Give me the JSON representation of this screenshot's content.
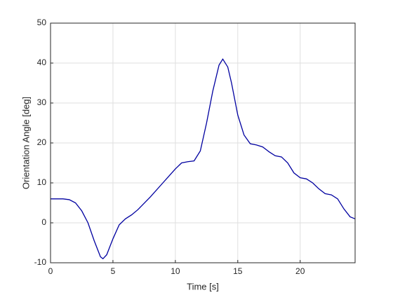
{
  "chart_data": {
    "type": "line",
    "xlabel": "Time [s]",
    "ylabel": "Orientation Angle [deg]",
    "x": [
      0,
      1,
      1.5,
      2,
      2.5,
      3,
      3.5,
      4,
      4.2,
      4.5,
      5,
      5.5,
      6,
      6.5,
      7,
      8,
      9,
      10,
      10.5,
      11,
      11.5,
      12,
      12.5,
      13,
      13.5,
      13.8,
      14.2,
      14.5,
      15,
      15.5,
      16,
      16.5,
      17,
      17.5,
      18,
      18.5,
      19,
      19.5,
      20,
      20.5,
      21,
      21.5,
      22,
      22.5,
      23,
      23.5,
      24,
      24.4
    ],
    "series": [
      {
        "color": "#0000a0",
        "values": [
          6,
          6,
          5.8,
          5,
          3,
          0,
          -4.5,
          -8.5,
          -9,
          -8,
          -4,
          -0.5,
          1,
          2,
          3.3,
          6.5,
          10,
          13.5,
          15,
          15.3,
          15.5,
          18,
          25,
          33,
          39.5,
          41,
          39,
          35,
          27,
          22,
          19.8,
          19.5,
          19,
          17.8,
          16.8,
          16.5,
          15,
          12.5,
          11.3,
          11,
          10,
          8.5,
          7.3,
          7,
          6,
          3.5,
          1.5,
          1
        ]
      }
    ],
    "xlim": [
      0,
      24.4
    ],
    "ylim": [
      -10,
      50
    ],
    "xticks": [
      0,
      5,
      10,
      15,
      20
    ],
    "yticks": [
      -10,
      0,
      10,
      20,
      30,
      40,
      50
    ],
    "grid": true
  }
}
